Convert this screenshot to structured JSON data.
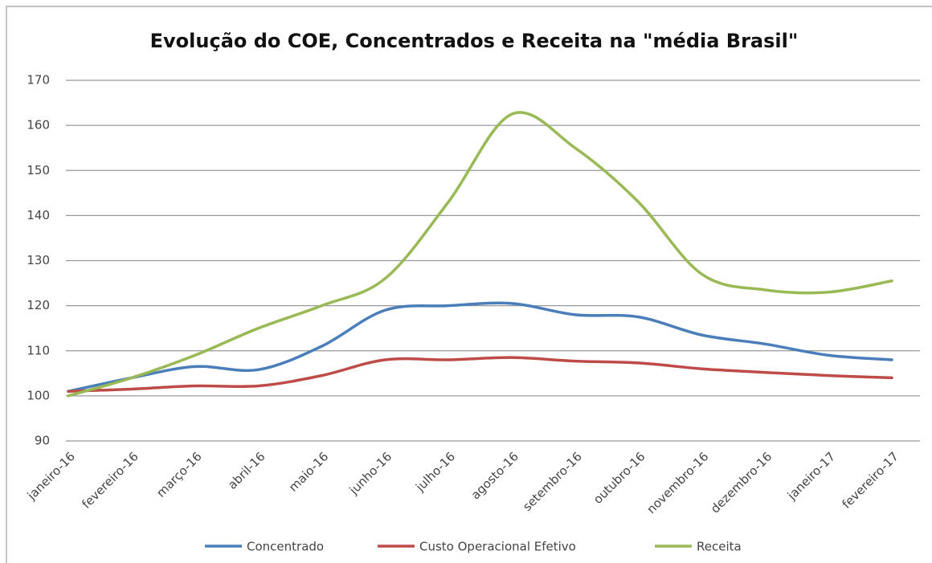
{
  "chart_data": {
    "type": "line",
    "title": "Evolução do COE, Concentrados e Receita na \"média Brasil\"",
    "categories": [
      "janeiro-16",
      "fevereiro-16",
      "março-16",
      "abril-16",
      "maio-16",
      "junho-16",
      "julho-16",
      "agosto-16",
      "setembro-16",
      "outubro-16",
      "novembro-16",
      "dezembro-16",
      "janeiro-17",
      "fevereiro-17"
    ],
    "series": [
      {
        "name": "Concentrado",
        "color": "#4a7ebb",
        "values": [
          101,
          104,
          106.5,
          105.8,
          111,
          119,
          120,
          120.5,
          118,
          117.5,
          113.5,
          111.5,
          109,
          108
        ]
      },
      {
        "name": "Custo Operacional Efetivo",
        "color": "#be4b48",
        "values": [
          101,
          101.5,
          102.2,
          102.2,
          104.5,
          108,
          108,
          108.5,
          107.7,
          107.3,
          106,
          105.2,
          104.5,
          104
        ]
      },
      {
        "name": "Receita",
        "color": "#98b954",
        "values": [
          100,
          104,
          109,
          115,
          120,
          126,
          143,
          162.5,
          155,
          143,
          127,
          123.5,
          123,
          125.5
        ]
      }
    ],
    "ylim": [
      90,
      170
    ],
    "yticks": [
      90,
      100,
      110,
      120,
      130,
      140,
      150,
      160,
      170
    ],
    "grid": true,
    "legend": "bottom"
  }
}
